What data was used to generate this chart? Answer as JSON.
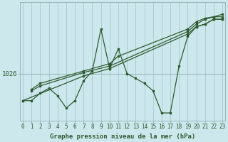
{
  "background_color": "#cce8ec",
  "plot_bg_color": "#cce8ec",
  "line_color": "#2d5a2d",
  "marker_color": "#2d5a2d",
  "vline_color": "#aacdd4",
  "hline_color": "#9ab8bc",
  "xlabel": "Graphe pression niveau de la mer (hPa)",
  "xlim": [
    -0.3,
    23.3
  ],
  "ylim_min": 1016.5,
  "ylim_max": 1040.5,
  "ytick_val": 1026,
  "zigzag_x": [
    0,
    1,
    2,
    3,
    4,
    5,
    6,
    7,
    8,
    9,
    10,
    11,
    12,
    13,
    14,
    15,
    16,
    17,
    18,
    19,
    20,
    21,
    22,
    23
  ],
  "zigzag_y": [
    1020.5,
    1020.5,
    1022,
    1023,
    1021.5,
    1019,
    1020.5,
    1024.5,
    1026.5,
    1035,
    1027,
    1031,
    1026,
    1025,
    1024,
    1022.5,
    1018,
    1018,
    1027.5,
    1033.5,
    1035.5,
    1036,
    1037,
    1037
  ],
  "line1_x": [
    0,
    7,
    10,
    19,
    20,
    21,
    22,
    23
  ],
  "line1_y": [
    1020.5,
    1025.5,
    1027,
    1034,
    1035.5,
    1036,
    1037,
    1037
  ],
  "line2_x": [
    1,
    2,
    7,
    10,
    19,
    20,
    21,
    22,
    23
  ],
  "line2_y": [
    1022.5,
    1023.5,
    1026.2,
    1027.5,
    1034.5,
    1036,
    1037,
    1037.5,
    1037.5
  ],
  "line3_x": [
    1,
    2,
    7,
    10,
    11,
    19,
    20,
    21,
    22,
    23
  ],
  "line3_y": [
    1022.8,
    1024,
    1026.5,
    1028,
    1029.5,
    1035,
    1036.5,
    1037.2,
    1037.5,
    1038
  ],
  "xticks": [
    0,
    1,
    2,
    3,
    4,
    5,
    6,
    7,
    8,
    9,
    10,
    11,
    12,
    13,
    14,
    15,
    16,
    17,
    18,
    19,
    20,
    21,
    22,
    23
  ],
  "fontsize_xlabel": 6.5,
  "fontsize_ytick": 6.5,
  "fontsize_xtick": 5.5
}
